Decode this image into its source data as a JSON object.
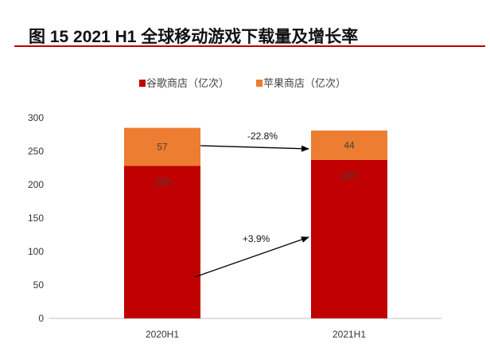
{
  "title": "图 15 2021 H1 全球移动游戏下载量及增长率",
  "chart_data": {
    "type": "bar",
    "stacked": true,
    "categories": [
      "2020H1",
      "2021H1"
    ],
    "series": [
      {
        "name": "谷歌商店（亿次）",
        "values": [
          228,
          237
        ],
        "color": "#c00000"
      },
      {
        "name": "苹果商店（亿次）",
        "values": [
          57,
          44
        ],
        "color": "#ed7d31"
      }
    ],
    "ylim": [
      0,
      300
    ],
    "yticks": [
      0,
      50,
      100,
      150,
      200,
      250,
      300
    ],
    "grid": false,
    "legend": "top",
    "annotations": [
      {
        "text": "-22.8%",
        "series": "苹果商店（亿次）"
      },
      {
        "text": "+3.9%",
        "series": "谷歌商店（亿次）"
      }
    ]
  }
}
